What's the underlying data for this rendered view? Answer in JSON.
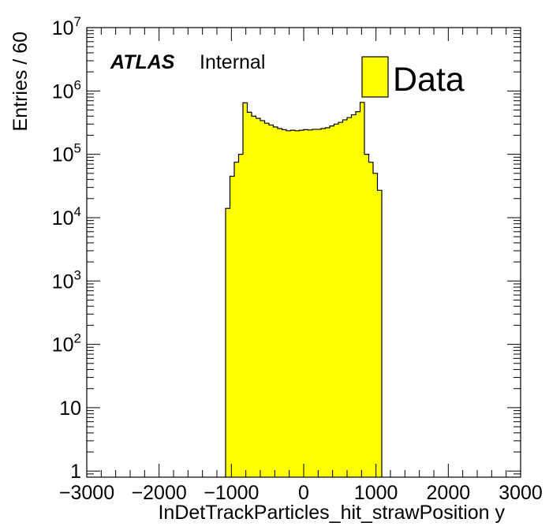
{
  "chart_data": {
    "type": "histogram",
    "xlabel": "InDetTrackParticles_hit_strawPosition y",
    "ylabel": "Entries / 60",
    "log_y": true,
    "xlim": [
      -3000,
      3000
    ],
    "ylim": [
      0.8,
      10000000
    ],
    "x_tick_labels": [
      "−3000",
      "−2000",
      "−1000",
      "0",
      "1000",
      "2000",
      "3000"
    ],
    "y_tick_labels": [
      {
        "base": "1",
        "exp": ""
      },
      {
        "base": "10",
        "exp": ""
      },
      {
        "base": "10",
        "exp": "2"
      },
      {
        "base": "10",
        "exp": "3"
      },
      {
        "base": "10",
        "exp": "4"
      },
      {
        "base": "10",
        "exp": "5"
      },
      {
        "base": "10",
        "exp": "6"
      },
      {
        "base": "10",
        "exp": "7"
      }
    ],
    "fill_color": "#ffff00",
    "line_color": "#000000",
    "label": {
      "bold": "ATLAS",
      "normal": "Internal"
    },
    "legend": [
      {
        "name": "Data",
        "color": "#ffff00"
      }
    ],
    "legend_position": "top-right",
    "bin_width": 60,
    "bins": [
      {
        "x0": -1080,
        "y": 14000
      },
      {
        "x0": -1020,
        "y": 45000
      },
      {
        "x0": -960,
        "y": 75000
      },
      {
        "x0": -900,
        "y": 100000
      },
      {
        "x0": -840,
        "y": 650000
      },
      {
        "x0": -780,
        "y": 460000
      },
      {
        "x0": -720,
        "y": 400000
      },
      {
        "x0": -660,
        "y": 370000
      },
      {
        "x0": -600,
        "y": 340000
      },
      {
        "x0": -540,
        "y": 310000
      },
      {
        "x0": -480,
        "y": 290000
      },
      {
        "x0": -420,
        "y": 270000
      },
      {
        "x0": -360,
        "y": 255000
      },
      {
        "x0": -300,
        "y": 245000
      },
      {
        "x0": -240,
        "y": 235000
      },
      {
        "x0": -180,
        "y": 240000
      },
      {
        "x0": -120,
        "y": 235000
      },
      {
        "x0": -60,
        "y": 240000
      },
      {
        "x0": 0,
        "y": 245000
      },
      {
        "x0": 60,
        "y": 242000
      },
      {
        "x0": 120,
        "y": 248000
      },
      {
        "x0": 180,
        "y": 248000
      },
      {
        "x0": 240,
        "y": 255000
      },
      {
        "x0": 300,
        "y": 262000
      },
      {
        "x0": 360,
        "y": 280000
      },
      {
        "x0": 420,
        "y": 300000
      },
      {
        "x0": 480,
        "y": 320000
      },
      {
        "x0": 540,
        "y": 350000
      },
      {
        "x0": 600,
        "y": 380000
      },
      {
        "x0": 660,
        "y": 420000
      },
      {
        "x0": 720,
        "y": 470000
      },
      {
        "x0": 780,
        "y": 660000
      },
      {
        "x0": 840,
        "y": 100000
      },
      {
        "x0": 900,
        "y": 75000
      },
      {
        "x0": 960,
        "y": 50000
      },
      {
        "x0": 1020,
        "y": 27000
      }
    ]
  }
}
